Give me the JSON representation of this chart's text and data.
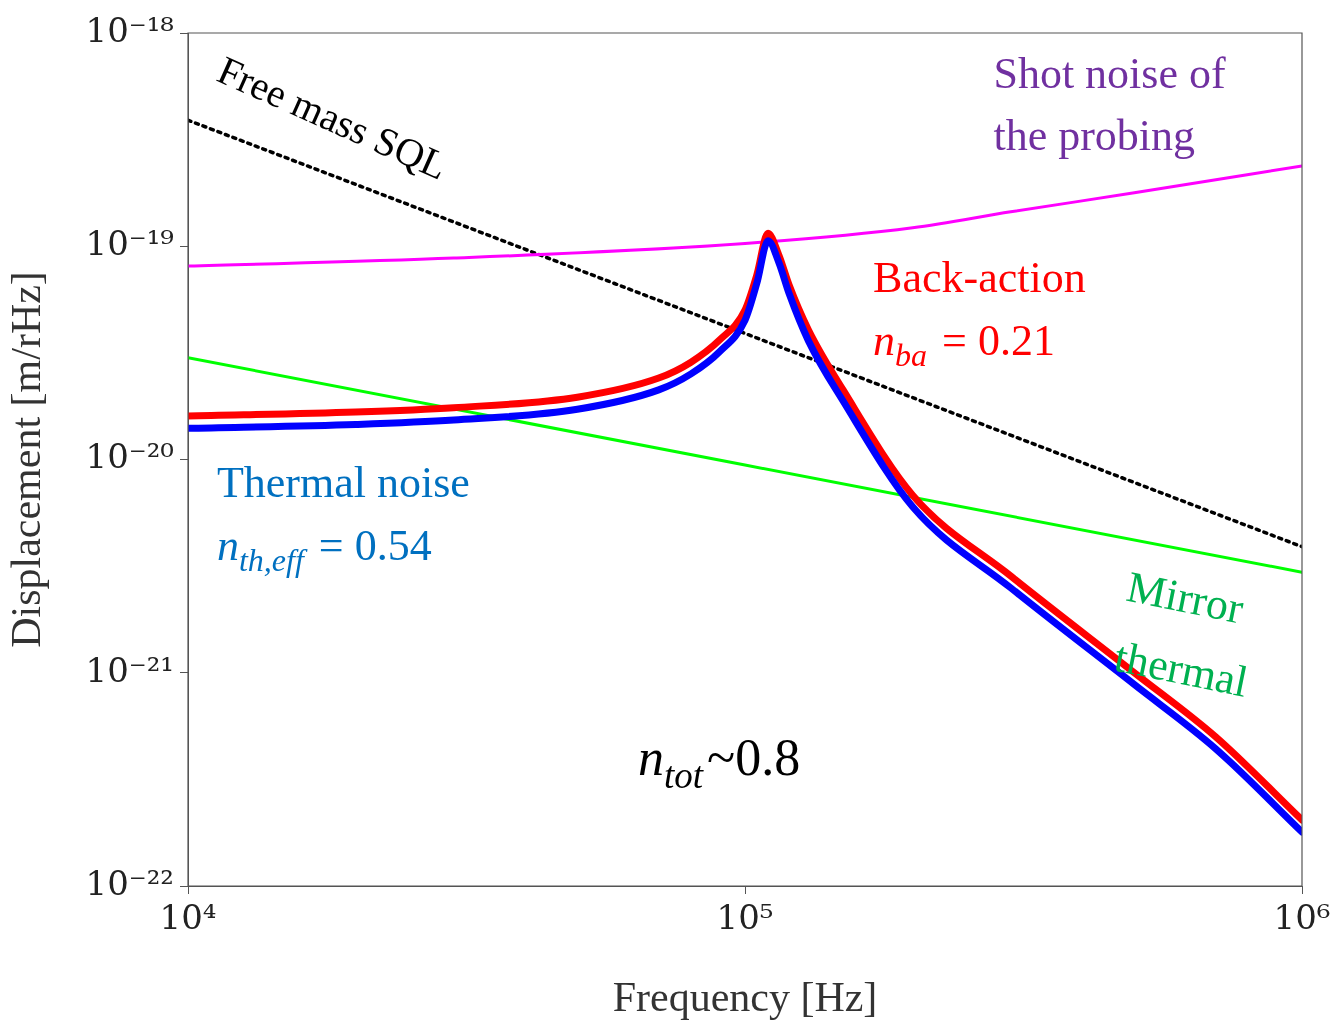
{
  "chart_data": {
    "type": "line",
    "log": "xy",
    "marker": "none",
    "xlabel": "Frequency [Hz]",
    "ylabel": "Displacement [m/rHz]",
    "xlim": [
      10000,
      1000000
    ],
    "ylim": [
      1e-22,
      1e-18
    ],
    "xticks": [
      {
        "value": 10000,
        "label": "10⁴"
      },
      {
        "value": 100000,
        "label": "10⁵"
      },
      {
        "value": 1000000,
        "label": "10⁶"
      }
    ],
    "yticks": [
      {
        "value": 1e-22,
        "label": "10⁻²²"
      },
      {
        "value": 1e-21,
        "label": "10⁻²¹"
      },
      {
        "value": 1e-20,
        "label": "10⁻²⁰"
      },
      {
        "value": 1e-19,
        "label": "10⁻¹⁹"
      },
      {
        "value": 1e-18,
        "label": "10⁻¹⁸"
      }
    ],
    "series": [
      {
        "color": "#000000",
        "line_style": "dotted",
        "x": [
          10000,
          1000000
        ],
        "values": [
          3.9e-19,
          3.9e-21
        ]
      },
      {
        "color": "#ff00ff",
        "x": [
          10000,
          30000,
          100000,
          200000,
          300000,
          500000,
          1000000
        ],
        "values": [
          8.07e-20,
          8.8e-20,
          1.03e-19,
          1.22e-19,
          1.45e-19,
          1.78e-19,
          2.38e-19
        ]
      },
      {
        "color": "#00ff00",
        "x": [
          10000,
          1000000
        ],
        "values": [
          3e-20,
          2.96e-21
        ]
      },
      {
        "color": "#ff0000",
        "x": [
          10000,
          20000,
          30000,
          50000,
          70000,
          80000,
          90000,
          100000,
          105000,
          110000,
          115000,
          120000,
          130000,
          150000,
          200000,
          300000,
          500000,
          700000,
          1000000
        ],
        "values": [
          1.6e-20,
          1.67e-20,
          1.75e-20,
          1.96e-20,
          2.41e-20,
          2.86e-20,
          3.63e-20,
          5.02e-20,
          7.33e-20,
          1.15e-19,
          9.1e-20,
          6.58e-20,
          4.05e-20,
          2.12e-20,
          6.8e-21,
          2.84e-21,
          1e-21,
          5e-22,
          2.04e-22
        ]
      },
      {
        "color": "#0000ff",
        "x": [
          10000,
          20000,
          30000,
          50000,
          70000,
          80000,
          90000,
          100000,
          105000,
          110000,
          115000,
          120000,
          130000,
          150000,
          200000,
          300000,
          500000,
          700000,
          1000000
        ],
        "values": [
          1.4e-20,
          1.46e-20,
          1.53e-20,
          1.72e-20,
          2.12e-20,
          2.52e-20,
          3.2e-20,
          4.5e-20,
          6.7e-20,
          1.06e-19,
          8.4e-20,
          6e-20,
          3.6e-20,
          1.88e-20,
          6e-21,
          2.5e-21,
          8.8e-22,
          4.4e-22,
          1.79e-22
        ]
      }
    ],
    "annotations": [
      "Free mass SQL",
      "Shot noise of",
      "the probing",
      "Back-action",
      "n$_{ba}$ = 0.21",
      "Thermal noise",
      "n$_{th,eff}$ = 0.54",
      "Mirror",
      "thermal",
      "n$_{tot}$~0.8"
    ]
  }
}
